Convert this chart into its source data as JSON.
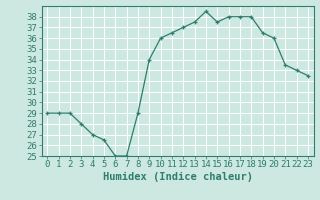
{
  "x": [
    0,
    1,
    2,
    3,
    4,
    5,
    6,
    7,
    8,
    9,
    10,
    11,
    12,
    13,
    14,
    15,
    16,
    17,
    18,
    19,
    20,
    21,
    22,
    23
  ],
  "y": [
    29,
    29,
    29,
    28,
    27,
    26.5,
    25,
    25,
    29,
    34,
    36,
    36.5,
    37,
    37.5,
    38.5,
    37.5,
    38,
    38,
    38,
    36.5,
    36,
    33.5,
    33,
    32.5
  ],
  "line_color": "#2e7d6e",
  "marker": "+",
  "marker_size": 3,
  "marker_color": "#2e7d6e",
  "bg_color": "#cde8e0",
  "grid_color": "#b0d4cc",
  "xlabel": "Humidex (Indice chaleur)",
  "ylim": [
    25,
    39
  ],
  "xlim": [
    -0.5,
    23.5
  ],
  "yticks": [
    25,
    26,
    27,
    28,
    29,
    30,
    31,
    32,
    33,
    34,
    35,
    36,
    37,
    38
  ],
  "xticks": [
    0,
    1,
    2,
    3,
    4,
    5,
    6,
    7,
    8,
    9,
    10,
    11,
    12,
    13,
    14,
    15,
    16,
    17,
    18,
    19,
    20,
    21,
    22,
    23
  ],
  "tick_color": "#2e7d6e",
  "label_color": "#2e7d6e",
  "xlabel_fontsize": 7.5,
  "tick_fontsize": 6.5,
  "linewidth": 0.9
}
